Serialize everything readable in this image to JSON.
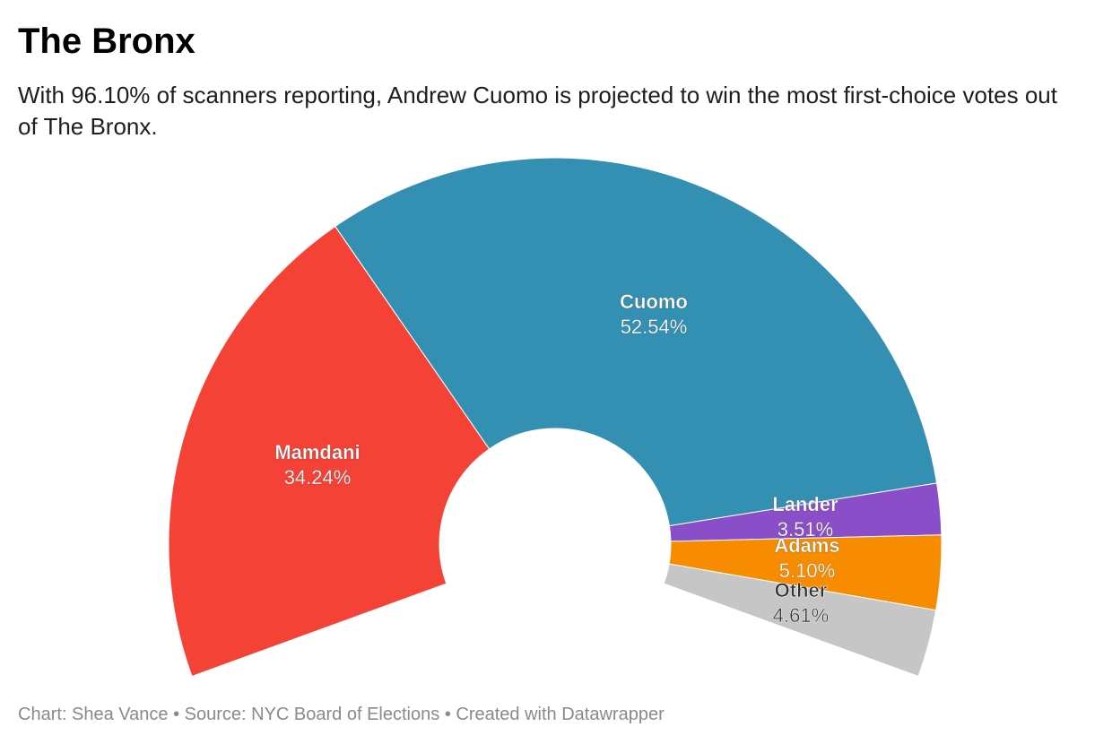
{
  "title": "The Bronx",
  "subtitle": "With 96.10% of scanners reporting, Andrew Cuomo is projected to win the most first-choice votes out of The Bronx.",
  "footer": {
    "chart_by": "Chart: Shea Vance",
    "separator": "•",
    "source": "Source: NYC Board of Elections",
    "created_with": "Created with Datawrapper"
  },
  "chart_data": {
    "type": "pie",
    "variant": "semi-donut",
    "title": "The Bronx",
    "slices": [
      {
        "name": "Mamdani",
        "value": 34.24,
        "label": "34.24%",
        "color": "#f44336",
        "label_dark": false
      },
      {
        "name": "Cuomo",
        "value": 52.54,
        "label": "52.54%",
        "color": "#3390b3",
        "label_dark": false
      },
      {
        "name": "Lander",
        "value": 3.51,
        "label": "3.51%",
        "color": "#8a4fc8",
        "label_dark": false
      },
      {
        "name": "Adams",
        "value": 5.1,
        "label": "5.10%",
        "color": "#f78c00",
        "label_dark": false
      },
      {
        "name": "Other",
        "value": 4.61,
        "label": "4.61%",
        "color": "#c6c6c6",
        "label_dark": true
      }
    ]
  }
}
